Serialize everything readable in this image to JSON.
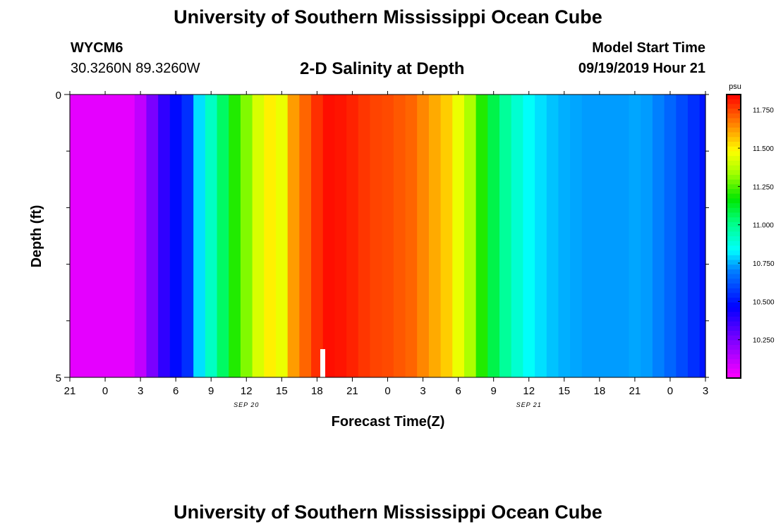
{
  "header": {
    "title": "University of Southern Mississippi Ocean Cube",
    "station": "WYCM6",
    "coordinates": "30.3260N 89.3260W",
    "start_label": "Model Start Time",
    "start_value": "09/19/2019 Hour 21"
  },
  "footer": {
    "title": "University of Southern Mississippi Ocean Cube"
  },
  "chart_data": {
    "type": "heatmap",
    "title": "2-D Salinity at Depth",
    "xlabel": "Forecast Time(Z)",
    "ylabel": "Depth (ft)",
    "y_ticks": [
      "0",
      "5"
    ],
    "ylim": [
      0,
      5
    ],
    "x_ticks": [
      "21",
      "0",
      "3",
      "6",
      "9",
      "12",
      "15",
      "18",
      "21",
      "0",
      "3",
      "6",
      "9",
      "12",
      "15",
      "18",
      "21",
      "0",
      "3"
    ],
    "date_labels": [
      {
        "label": "SEP 20",
        "at_tick": 5
      },
      {
        "label": "SEP 21",
        "at_tick": 13
      }
    ],
    "forecast_hours": [
      0,
      1,
      2,
      3,
      4,
      5,
      6,
      7,
      8,
      9,
      10,
      11,
      12,
      13,
      14,
      15,
      16,
      17,
      18,
      19,
      20,
      21,
      22,
      23,
      24,
      25,
      26,
      27,
      28,
      29,
      30,
      31,
      32,
      33,
      34,
      35,
      36,
      37,
      38,
      39,
      40,
      41,
      42,
      43,
      44,
      45,
      46,
      47,
      48,
      49,
      50,
      51,
      52,
      53,
      54
    ],
    "salinity": [
      10.05,
      10.05,
      10.05,
      10.05,
      10.05,
      10.05,
      10.12,
      10.25,
      10.38,
      10.48,
      10.55,
      10.8,
      10.92,
      11.05,
      11.2,
      11.3,
      11.42,
      11.5,
      11.45,
      11.62,
      11.7,
      11.78,
      11.83,
      11.82,
      11.8,
      11.77,
      11.75,
      11.74,
      11.72,
      11.7,
      11.65,
      11.6,
      11.55,
      11.45,
      11.35,
      11.2,
      11.08,
      10.98,
      10.9,
      10.84,
      10.8,
      10.77,
      10.75,
      10.74,
      10.73,
      10.73,
      10.73,
      10.73,
      10.74,
      10.73,
      10.7,
      10.65,
      10.6,
      10.55,
      10.5
    ],
    "colorbar": {
      "unit": "psu",
      "ticks": [
        "10.250",
        "10.500",
        "10.750",
        "11.000",
        "11.250",
        "11.500",
        "11.750"
      ],
      "range": [
        10.0,
        11.85
      ]
    }
  }
}
